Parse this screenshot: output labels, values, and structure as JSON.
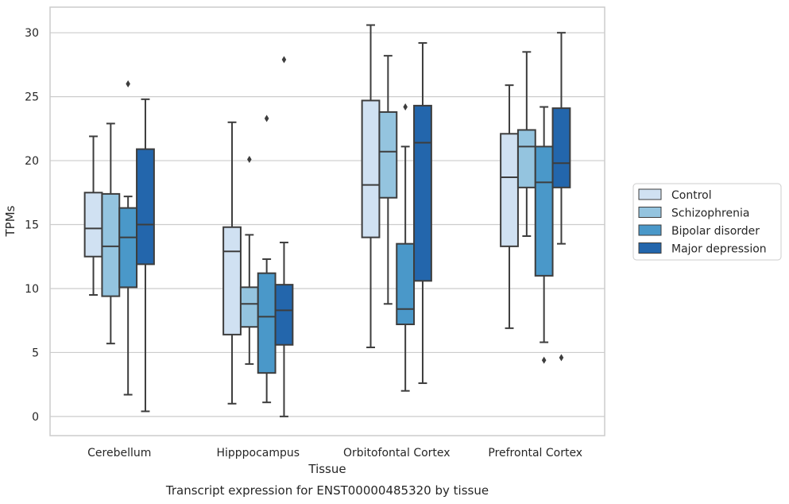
{
  "chart_data": {
    "type": "box",
    "title": "",
    "caption": "Transcript expression for ENST00000485320 by tissue",
    "xlabel": "Tissue",
    "ylabel": "TPMs",
    "ylim": [
      -1.5,
      32
    ],
    "yticks": [
      0,
      5,
      10,
      15,
      20,
      25,
      30
    ],
    "grid": "horizontal",
    "legend_position": "right",
    "categories": [
      "Cerebellum",
      "Hipppocampus",
      "Orbitofontal Cortex",
      "Prefrontal Cortex"
    ],
    "series": [
      {
        "name": "Control",
        "color": "#d0e1f2",
        "boxes": [
          {
            "whislo": 9.5,
            "q1": 12.5,
            "med": 14.7,
            "q3": 17.5,
            "whishi": 21.9,
            "fliers": []
          },
          {
            "whislo": 1.0,
            "q1": 6.4,
            "med": 12.9,
            "q3": 14.8,
            "whishi": 23.0,
            "fliers": []
          },
          {
            "whislo": 5.4,
            "q1": 14.0,
            "med": 18.1,
            "q3": 24.7,
            "whishi": 30.6,
            "fliers": []
          },
          {
            "whislo": 6.9,
            "q1": 13.3,
            "med": 18.7,
            "q3": 22.1,
            "whishi": 25.9,
            "fliers": []
          }
        ]
      },
      {
        "name": "Schizophrenia",
        "color": "#94c4df",
        "boxes": [
          {
            "whislo": 5.7,
            "q1": 9.4,
            "med": 13.3,
            "q3": 17.4,
            "whishi": 22.9,
            "fliers": []
          },
          {
            "whislo": 4.1,
            "q1": 7.0,
            "med": 8.8,
            "q3": 10.1,
            "whishi": 14.2,
            "fliers": [
              20.1
            ]
          },
          {
            "whislo": 8.8,
            "q1": 17.1,
            "med": 20.7,
            "q3": 23.8,
            "whishi": 28.2,
            "fliers": []
          },
          {
            "whislo": 14.1,
            "q1": 17.9,
            "med": 21.1,
            "q3": 22.4,
            "whishi": 28.5,
            "fliers": []
          }
        ]
      },
      {
        "name": "Bipolar disorder",
        "color": "#4a98c9",
        "boxes": [
          {
            "whislo": 1.7,
            "q1": 10.1,
            "med": 14.0,
            "q3": 16.3,
            "whishi": 17.2,
            "fliers": [
              26.0
            ]
          },
          {
            "whislo": 1.1,
            "q1": 3.4,
            "med": 7.8,
            "q3": 11.2,
            "whishi": 12.3,
            "fliers": [
              23.3
            ]
          },
          {
            "whislo": 2.0,
            "q1": 7.2,
            "med": 8.4,
            "q3": 13.5,
            "whishi": 21.1,
            "fliers": [
              24.2
            ]
          },
          {
            "whislo": 5.8,
            "q1": 11.0,
            "med": 18.3,
            "q3": 21.1,
            "whishi": 24.2,
            "fliers": [
              4.4
            ]
          }
        ]
      },
      {
        "name": "Major depression",
        "color": "#2366ac",
        "boxes": [
          {
            "whislo": 0.4,
            "q1": 11.9,
            "med": 15.0,
            "q3": 20.9,
            "whishi": 24.8,
            "fliers": []
          },
          {
            "whislo": 0.0,
            "q1": 5.6,
            "med": 8.3,
            "q3": 10.3,
            "whishi": 13.6,
            "fliers": [
              27.9
            ]
          },
          {
            "whislo": 2.6,
            "q1": 10.6,
            "med": 21.4,
            "q3": 24.3,
            "whishi": 29.2,
            "fliers": []
          },
          {
            "whislo": 13.5,
            "q1": 17.9,
            "med": 19.8,
            "q3": 24.1,
            "whishi": 30.0,
            "fliers": [
              4.6
            ]
          }
        ]
      }
    ]
  }
}
